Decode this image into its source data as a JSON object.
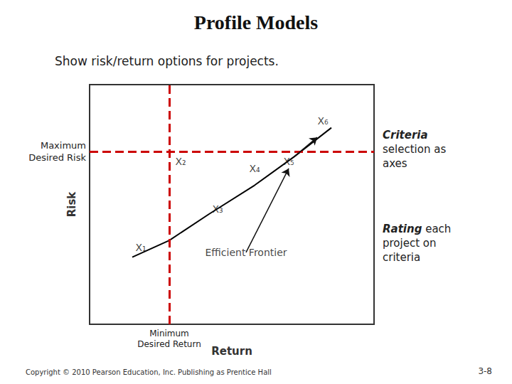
{
  "chart_data": {
    "type": "line",
    "title": "Profile Models",
    "subtitle": "Show risk/return options for projects.",
    "xlabel": "Return",
    "ylabel": "Risk",
    "x": [
      1.5,
      2.8,
      4.2,
      5.8,
      7.2,
      8.5
    ],
    "values": [
      2.8,
      3.5,
      4.6,
      5.8,
      7.0,
      8.2
    ],
    "color": "#000000",
    "marker": "none",
    "line_style": "solid",
    "xlim": [
      0,
      10
    ],
    "ylim": [
      0,
      10
    ],
    "xticks": [],
    "yticks": [],
    "tick_labels": false,
    "grid": false,
    "hlines": [
      {
        "y": 7.2,
        "color": "#CC0000",
        "line_style": "dashed",
        "label": "Maximum\nDesired Risk"
      }
    ],
    "vlines": [
      {
        "x": 2.8,
        "color": "#CC0000",
        "line_style": "dashed",
        "label": "Minimum\nDesired Return"
      }
    ],
    "annotations": [
      {
        "text": "X₁",
        "x": 1.8,
        "y": 3.2
      },
      {
        "text": "X₂",
        "x": 3.2,
        "y": 6.8
      },
      {
        "text": "X₃",
        "x": 4.5,
        "y": 4.8
      },
      {
        "text": "X₄",
        "x": 5.8,
        "y": 6.5
      },
      {
        "text": "X₅",
        "x": 7.0,
        "y": 6.8
      },
      {
        "text": "X₆",
        "x": 8.2,
        "y": 8.5
      }
    ],
    "arrows": [
      {
        "text": "Efficient Frontier",
        "x": 7.0,
        "y": 6.5,
        "x_from": 5.5,
        "y_from": 3.0
      },
      {
        "x": 8.0,
        "y": 7.8,
        "x_from": 7.2,
        "y_from": 7.0
      }
    ],
    "notes": [
      "Criteria\nselection as\naxes",
      "Rating each\nproject on\ncriteria"
    ],
    "footnote": "Copyright © 2010 Pearson Education, Inc. Publishing as Prentice Hall",
    "page_label": "3-8"
  }
}
